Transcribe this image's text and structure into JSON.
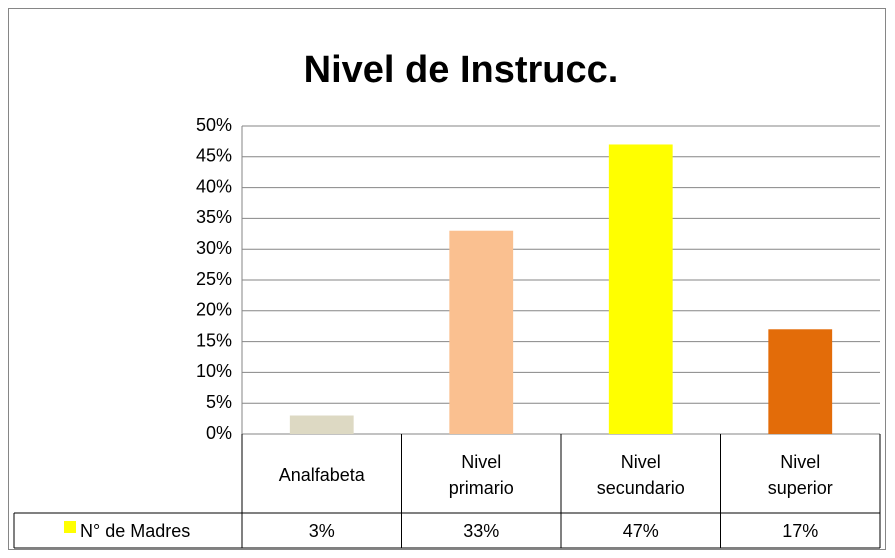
{
  "chart_data": {
    "type": "bar",
    "title": "Nivel de Instrucc.",
    "categories": [
      "Analfabeta",
      "Nivel primario",
      "Nivel secundario",
      "Nivel superior"
    ],
    "series": [
      {
        "name": "N° de Madres",
        "color": "#ffff00",
        "colors": [
          "#ddd9c3",
          "#fac090",
          "#ffff00",
          "#e36c09"
        ],
        "values": [
          3,
          33,
          47,
          17
        ],
        "value_labels": [
          "3%",
          "33%",
          "47%",
          "17%"
        ]
      }
    ],
    "ylim": [
      0,
      50
    ],
    "yticks": [
      {
        "value": 0,
        "label": "0%"
      },
      {
        "value": 5,
        "label": "5%"
      },
      {
        "value": 10,
        "label": "10%"
      },
      {
        "value": 15,
        "label": "15%"
      },
      {
        "value": 20,
        "label": "20%"
      },
      {
        "value": 25,
        "label": "25%"
      },
      {
        "value": 30,
        "label": "30%"
      },
      {
        "value": 35,
        "label": "35%"
      },
      {
        "value": 40,
        "label": "40%"
      },
      {
        "value": 45,
        "label": "45%"
      },
      {
        "value": 50,
        "label": "50%"
      }
    ],
    "grid": true,
    "data_table": true
  }
}
